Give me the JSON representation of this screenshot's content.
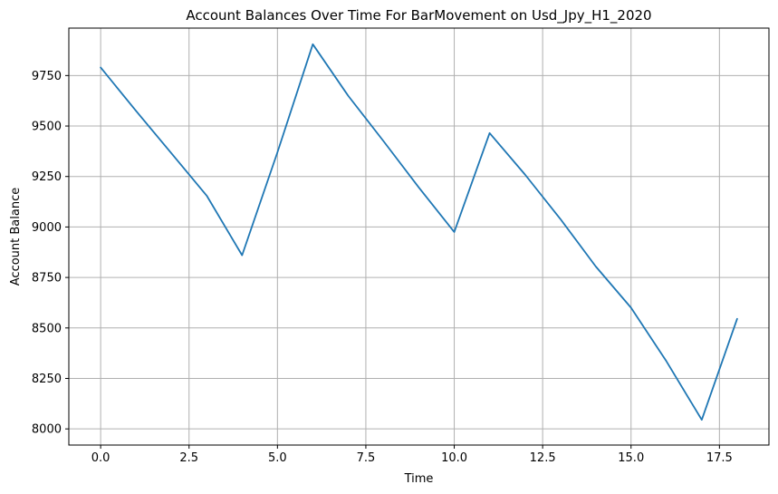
{
  "chart_data": {
    "type": "line",
    "title": "Account Balances Over Time For BarMovement on Usd_Jpy_H1_2020",
    "xlabel": "Time",
    "ylabel": "Account Balance",
    "xlim": [
      -0.9,
      18.9
    ],
    "ylim": [
      7920,
      9985
    ],
    "xticks": [
      0.0,
      2.5,
      5.0,
      7.5,
      10.0,
      12.5,
      15.0,
      17.5
    ],
    "xtick_labels": [
      "0.0",
      "2.5",
      "5.0",
      "7.5",
      "10.0",
      "12.5",
      "15.0",
      "17.5"
    ],
    "yticks": [
      8000,
      8250,
      8500,
      8750,
      9000,
      9250,
      9500,
      9750
    ],
    "ytick_labels": [
      "8000",
      "8250",
      "8500",
      "8750",
      "9000",
      "9250",
      "9500",
      "9750"
    ],
    "grid": true,
    "series": [
      {
        "color": "#1f77b4",
        "x": [
          0,
          1,
          2,
          3,
          4,
          5,
          6,
          7,
          8,
          9,
          10,
          11,
          12,
          13,
          14,
          15,
          16,
          17,
          18
        ],
        "y": [
          9790,
          9575,
          9365,
          9155,
          8860,
          9370,
          9905,
          9650,
          9425,
          9195,
          8975,
          9465,
          9260,
          9040,
          8805,
          8600,
          8335,
          8045,
          8545
        ]
      }
    ]
  }
}
